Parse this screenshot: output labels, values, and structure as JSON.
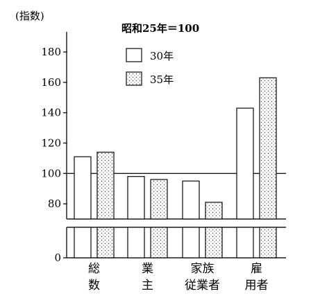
{
  "chart_data": {
    "type": "bar",
    "unit_label": "(指数)",
    "base_note": "昭和25年＝100",
    "categories": [
      "総数",
      "業主",
      "家族従業者",
      "雇用者"
    ],
    "category_lines": [
      [
        "総",
        "数"
      ],
      [
        "業",
        "主"
      ],
      [
        "家族",
        "従業者"
      ],
      [
        "雇",
        "用者"
      ]
    ],
    "series": [
      {
        "name": "30年",
        "values": [
          111,
          98,
          95,
          143
        ]
      },
      {
        "name": "35年",
        "values": [
          114,
          96,
          81,
          163
        ]
      }
    ],
    "yticks": [
      0,
      80,
      100,
      120,
      140,
      160,
      180
    ],
    "ylim": [
      0,
      180
    ],
    "axis_break": true,
    "reference_line": 100,
    "legend_position": "top-center"
  }
}
